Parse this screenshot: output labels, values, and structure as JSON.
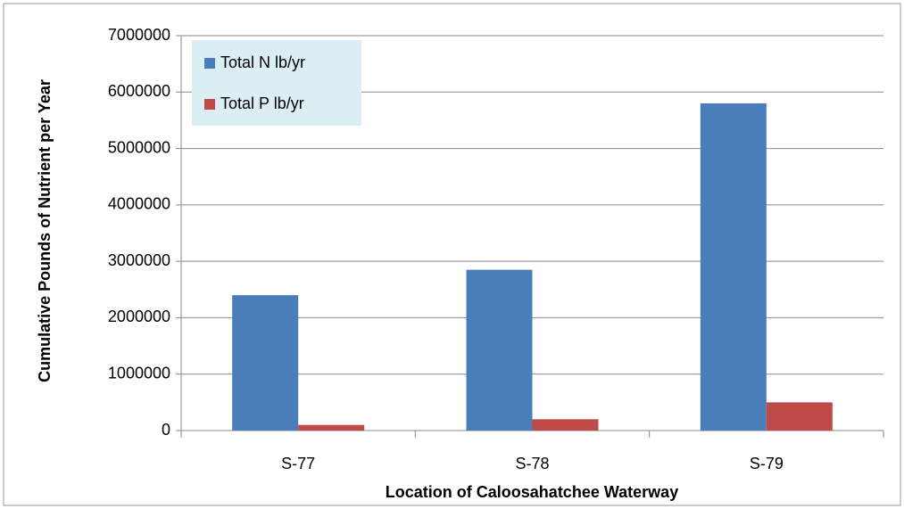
{
  "chart_data": {
    "type": "bar",
    "x_label": "Location of Caloosahatchee Waterway",
    "y_label": "Cumulative Pounds of Nutrient per Year",
    "categories": [
      "S-77",
      "S-78",
      "S-79"
    ],
    "series": [
      {
        "name": "Total N lb/yr",
        "color": "#4a7ebb",
        "values": [
          2400000,
          2850000,
          5800000
        ]
      },
      {
        "name": "Total P lb/yr",
        "color": "#be4b48",
        "values": [
          100000,
          200000,
          500000
        ]
      }
    ],
    "ylim": [
      0,
      7000000
    ],
    "yticks": [
      0,
      1000000,
      2000000,
      3000000,
      4000000,
      5000000,
      6000000,
      7000000
    ],
    "grid": true,
    "legend": "top-left"
  }
}
